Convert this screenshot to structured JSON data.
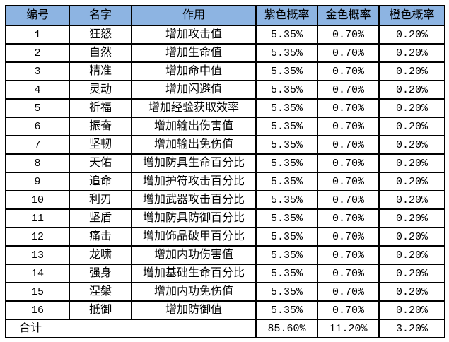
{
  "chart_data": {
    "type": "table",
    "columns": [
      "编号",
      "名字",
      "作用",
      "紫色概率",
      "金色概率",
      "橙色概率"
    ],
    "rows": [
      {
        "no": "1",
        "name": "狂怒",
        "effect": "增加攻击值",
        "purple": "5.35%",
        "gold": "0.70%",
        "orange": "0.20%"
      },
      {
        "no": "2",
        "name": "自然",
        "effect": "增加生命值",
        "purple": "5.35%",
        "gold": "0.70%",
        "orange": "0.20%"
      },
      {
        "no": "3",
        "name": "精准",
        "effect": "增加命中值",
        "purple": "5.35%",
        "gold": "0.70%",
        "orange": "0.20%"
      },
      {
        "no": "4",
        "name": "灵动",
        "effect": "增加闪避值",
        "purple": "5.35%",
        "gold": "0.70%",
        "orange": "0.20%"
      },
      {
        "no": "5",
        "name": "祈福",
        "effect": "增加经验获取效率",
        "purple": "5.35%",
        "gold": "0.70%",
        "orange": "0.20%"
      },
      {
        "no": "6",
        "name": "振奋",
        "effect": "增加输出伤害值",
        "purple": "5.35%",
        "gold": "0.70%",
        "orange": "0.20%"
      },
      {
        "no": "7",
        "name": "坚韧",
        "effect": "增加输出免伤值",
        "purple": "5.35%",
        "gold": "0.70%",
        "orange": "0.20%"
      },
      {
        "no": "8",
        "name": "天佑",
        "effect": "增加防具生命百分比",
        "purple": "5.35%",
        "gold": "0.70%",
        "orange": "0.20%"
      },
      {
        "no": "9",
        "name": "追命",
        "effect": "增加护符攻击百分比",
        "purple": "5.35%",
        "gold": "0.70%",
        "orange": "0.20%"
      },
      {
        "no": "10",
        "name": "利刃",
        "effect": "增加武器攻击百分比",
        "purple": "5.35%",
        "gold": "0.70%",
        "orange": "0.20%"
      },
      {
        "no": "11",
        "name": "坚盾",
        "effect": "增加防具防御百分比",
        "purple": "5.35%",
        "gold": "0.70%",
        "orange": "0.20%"
      },
      {
        "no": "12",
        "name": "痛击",
        "effect": "增加饰品破甲百分比",
        "purple": "5.35%",
        "gold": "0.70%",
        "orange": "0.20%"
      },
      {
        "no": "13",
        "name": "龙啸",
        "effect": "增加内功伤害值",
        "purple": "5.35%",
        "gold": "0.70%",
        "orange": "0.20%"
      },
      {
        "no": "14",
        "name": "强身",
        "effect": "增加基础生命百分比",
        "purple": "5.35%",
        "gold": "0.70%",
        "orange": "0.20%"
      },
      {
        "no": "15",
        "name": "涅槃",
        "effect": "增加内功免伤值",
        "purple": "5.35%",
        "gold": "0.70%",
        "orange": "0.20%"
      },
      {
        "no": "16",
        "name": "抵御",
        "effect": "增加防御值",
        "purple": "5.35%",
        "gold": "0.70%",
        "orange": "0.20%"
      }
    ],
    "total": {
      "label": "合计",
      "purple": "85.60%",
      "gold": "11.20%",
      "orange": "3.20%"
    }
  },
  "colors": {
    "header_bg": "#8DB4E2",
    "border": "#000000",
    "background": "#FFFFFF"
  }
}
